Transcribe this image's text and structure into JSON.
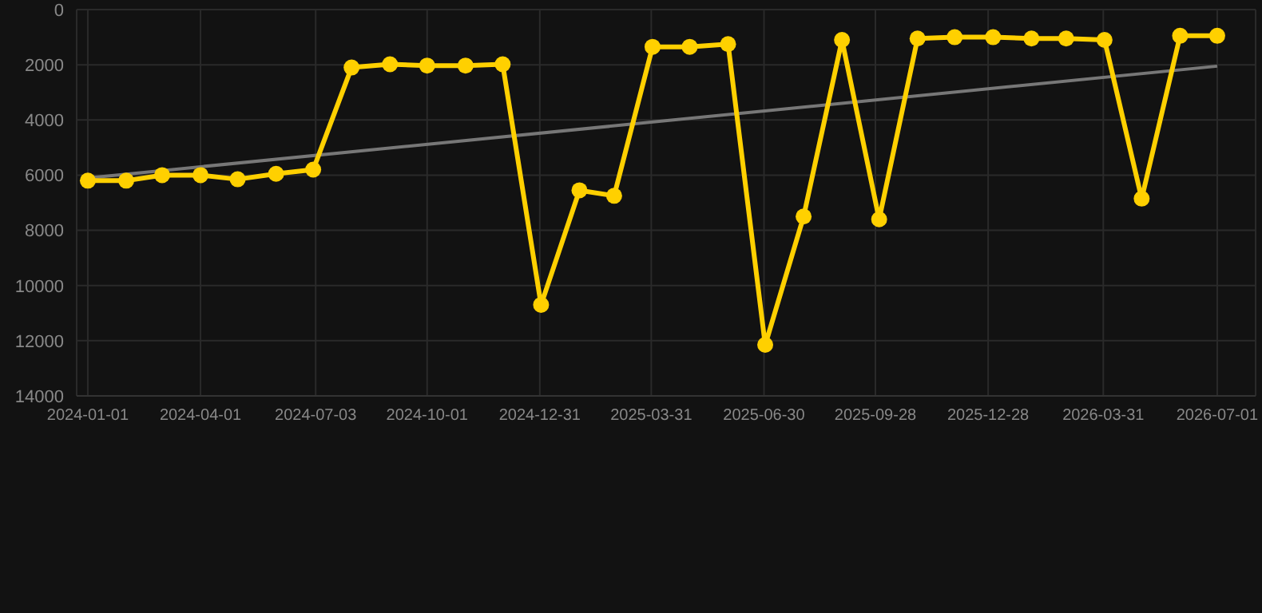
{
  "chart_data": {
    "type": "line",
    "xlim": [
      "2023-12-23",
      "2026-08-01"
    ],
    "xticks": [
      "2024-01-01",
      "2024-04-01",
      "2024-07-03",
      "2024-10-01",
      "2024-12-31",
      "2025-03-31",
      "2025-06-30",
      "2025-09-28",
      "2025-12-28",
      "2026-03-31",
      "2026-07-01"
    ],
    "ylim": [
      14000,
      0
    ],
    "yticks": [
      0,
      2000,
      4000,
      6000,
      8000,
      10000,
      12000,
      14000
    ],
    "grid": true,
    "marker": "circle",
    "line_style": "solid",
    "series": [
      {
        "color": "#ffd000",
        "x": [
          "2024-01-01",
          "2024-02-01",
          "2024-03-01",
          "2024-04-01",
          "2024-05-01",
          "2024-06-01",
          "2024-07-01",
          "2024-08-01",
          "2024-09-01",
          "2024-10-01",
          "2024-11-01",
          "2024-12-01",
          "2025-01-01",
          "2025-02-01",
          "2025-03-01",
          "2025-04-01",
          "2025-05-01",
          "2025-06-01",
          "2025-07-01",
          "2025-08-01",
          "2025-09-01",
          "2025-10-01",
          "2025-11-01",
          "2025-12-01",
          "2026-01-01",
          "2026-02-01",
          "2026-03-01",
          "2026-04-01",
          "2026-05-01",
          "2026-06-01",
          "2026-07-01"
        ],
        "values": [
          6200,
          6200,
          6000,
          6000,
          6150,
          5950,
          5800,
          2100,
          1980,
          2030,
          2030,
          1980,
          10700,
          6550,
          6750,
          1350,
          1350,
          1250,
          12150,
          7500,
          1100,
          7600,
          1050,
          1000,
          1000,
          1050,
          1050,
          1100,
          6850,
          950,
          950
        ]
      },
      {
        "type": "line",
        "color": "#777777",
        "marker": "none",
        "x": [
          "2024-01-01",
          "2026-07-01"
        ],
        "values": [
          6100,
          2050
        ]
      }
    ]
  }
}
